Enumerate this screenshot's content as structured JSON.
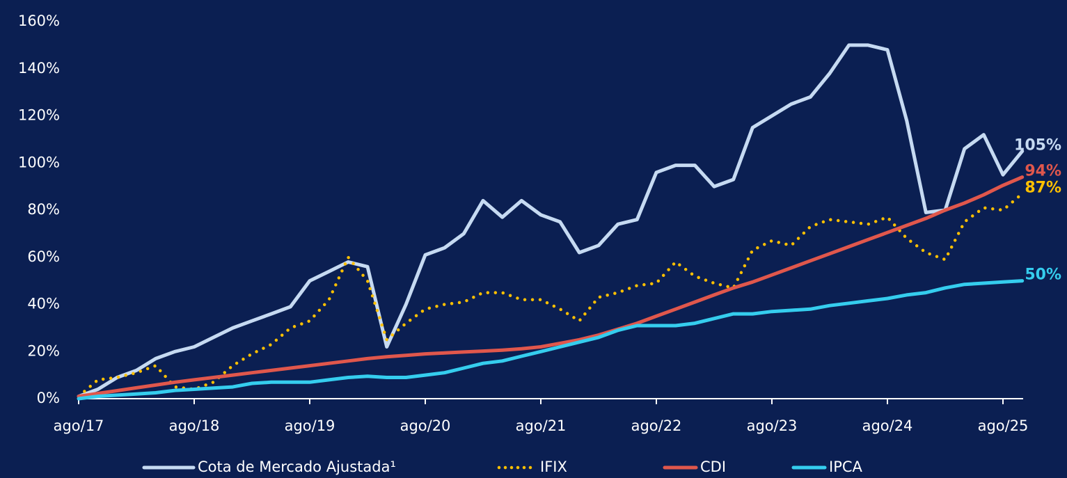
{
  "chart_data": {
    "type": "line",
    "categories": [
      "ago/17",
      null,
      null,
      null,
      null,
      null,
      "ago/18",
      null,
      null,
      null,
      null,
      null,
      "ago/19",
      null,
      null,
      null,
      null,
      null,
      "ago/20",
      null,
      null,
      null,
      null,
      null,
      "ago/21",
      null,
      null,
      null,
      null,
      null,
      "ago/22",
      null,
      null,
      null,
      null,
      null,
      "ago/23",
      null,
      null,
      null,
      null,
      null,
      "ago/24",
      null,
      null,
      null,
      null,
      null,
      "ago/25",
      null
    ],
    "ylim": [
      0,
      160
    ],
    "yticks": [
      {
        "value": 0,
        "label": "0%"
      },
      {
        "value": 20,
        "label": "20%"
      },
      {
        "value": 40,
        "label": "40%"
      },
      {
        "value": 60,
        "label": "60%"
      },
      {
        "value": 80,
        "label": "80%"
      },
      {
        "value": 100,
        "label": "100%"
      },
      {
        "value": 120,
        "label": "120%"
      },
      {
        "value": 140,
        "label": "140%"
      },
      {
        "value": 160,
        "label": "160%"
      }
    ],
    "grid": false,
    "legend": "bottom",
    "series": [
      {
        "name": "Cota de Mercado Ajustada¹",
        "color": "#c6daf2",
        "style": "solid",
        "values": [
          1,
          4,
          9,
          12,
          17,
          20,
          22,
          26,
          30,
          33,
          36,
          39,
          50,
          54,
          58,
          56,
          22,
          40,
          61,
          64,
          70,
          84,
          77,
          84,
          78,
          75,
          62,
          65,
          74,
          76,
          96,
          99,
          99,
          90,
          93,
          115,
          120,
          125,
          128,
          138,
          150,
          150,
          148,
          118,
          79,
          80,
          106,
          112,
          95,
          105
        ],
        "value_labels": [
          null,
          null,
          null,
          null,
          null,
          null,
          null,
          null,
          null,
          null,
          null,
          null,
          null,
          null,
          null,
          null,
          null,
          null,
          null,
          null,
          null,
          null,
          null,
          null,
          null,
          null,
          null,
          null,
          null,
          null,
          null,
          null,
          null,
          null,
          null,
          null,
          null,
          null,
          null,
          null,
          null,
          null,
          null,
          null,
          null,
          null,
          null,
          null,
          null,
          "105%"
        ]
      },
      {
        "name": "IFIX",
        "color": "#ffc000",
        "style": "dotted",
        "values": [
          1,
          8,
          9,
          11,
          14,
          5,
          4,
          7,
          14,
          19,
          23,
          30,
          33,
          42,
          60,
          50,
          25,
          32,
          38,
          40,
          41,
          45,
          45,
          42,
          42,
          38,
          33,
          43,
          45,
          48,
          49,
          58,
          52,
          49,
          47,
          63,
          67,
          65,
          73,
          76,
          75,
          74,
          77,
          68,
          62,
          59,
          75,
          81,
          80,
          87
        ],
        "value_labels": [
          null,
          null,
          null,
          null,
          null,
          null,
          null,
          null,
          null,
          null,
          null,
          null,
          null,
          null,
          null,
          null,
          null,
          null,
          null,
          null,
          null,
          null,
          null,
          null,
          null,
          null,
          null,
          null,
          null,
          null,
          null,
          null,
          null,
          null,
          null,
          null,
          null,
          null,
          null,
          null,
          null,
          null,
          null,
          null,
          null,
          null,
          null,
          null,
          null,
          "87%"
        ]
      },
      {
        "name": "CDI",
        "color": "#e0574c",
        "style": "solid",
        "values": [
          1,
          2.2,
          3.4,
          4.6,
          5.8,
          7,
          8,
          9,
          10,
          11,
          12,
          13,
          14,
          15,
          16,
          17,
          17.8,
          18.4,
          19,
          19.4,
          19.8,
          20.2,
          20.6,
          21.2,
          22,
          23.5,
          25,
          27,
          29.5,
          32,
          35,
          38,
          41,
          44,
          47,
          49.5,
          52.5,
          55.5,
          58.5,
          61.5,
          64.5,
          67.5,
          70.5,
          73.5,
          76.5,
          80,
          83,
          86.5,
          90.5,
          94
        ],
        "value_labels": [
          null,
          null,
          null,
          null,
          null,
          null,
          null,
          null,
          null,
          null,
          null,
          null,
          null,
          null,
          null,
          null,
          null,
          null,
          null,
          null,
          null,
          null,
          null,
          null,
          null,
          null,
          null,
          null,
          null,
          null,
          null,
          null,
          null,
          null,
          null,
          null,
          null,
          null,
          null,
          null,
          null,
          null,
          null,
          null,
          null,
          null,
          null,
          null,
          null,
          "94%"
        ]
      },
      {
        "name": "IPCA",
        "color": "#35cdee",
        "style": "solid",
        "values": [
          0,
          1,
          1.5,
          2,
          2.5,
          3.5,
          4,
          4.5,
          5,
          6.5,
          7,
          7,
          7,
          8,
          9,
          9.5,
          9,
          9,
          10,
          11,
          13,
          15,
          16,
          18,
          20,
          22,
          24,
          26,
          29,
          31,
          31,
          31,
          32,
          34,
          36,
          36,
          37,
          37.5,
          38,
          39.5,
          40.5,
          41.5,
          42.5,
          44,
          45,
          47,
          48.5,
          49,
          49.5,
          50
        ],
        "value_labels": [
          null,
          null,
          null,
          null,
          null,
          null,
          null,
          null,
          null,
          null,
          null,
          null,
          null,
          null,
          null,
          null,
          null,
          null,
          null,
          null,
          null,
          null,
          null,
          null,
          null,
          null,
          null,
          null,
          null,
          null,
          null,
          null,
          null,
          null,
          null,
          null,
          null,
          null,
          null,
          null,
          null,
          null,
          null,
          null,
          null,
          null,
          null,
          null,
          null,
          "50%"
        ]
      }
    ]
  }
}
